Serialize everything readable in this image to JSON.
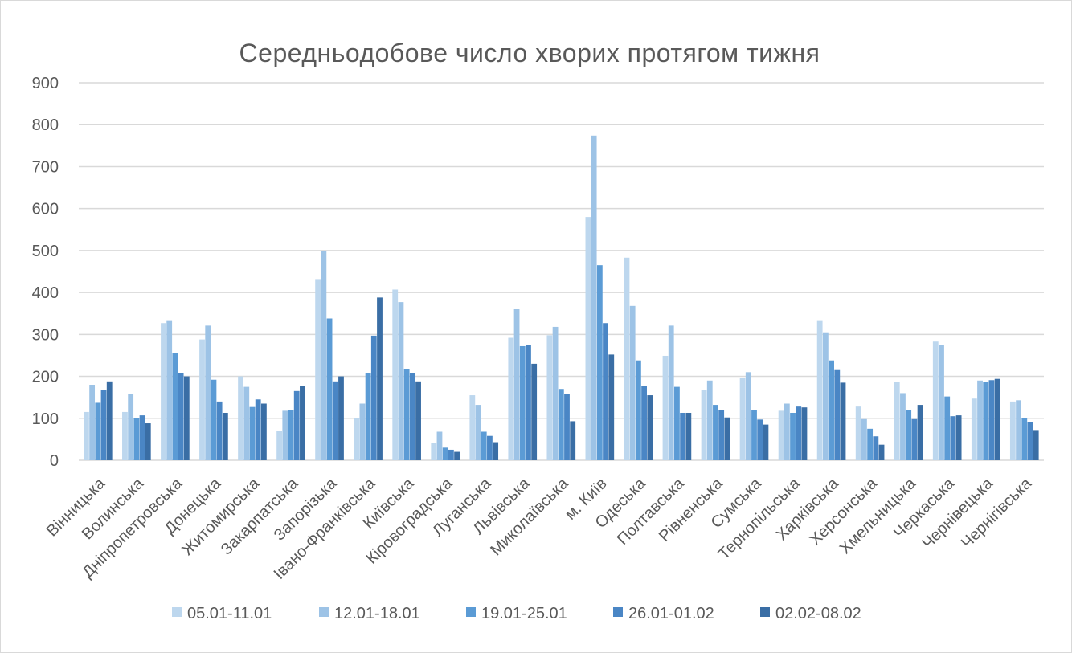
{
  "chart_data": {
    "type": "bar",
    "title": "Середньодобове число хворих протягом тижня",
    "xlabel": "",
    "ylabel": "",
    "ylim": [
      0,
      900
    ],
    "yticks": [
      0,
      100,
      200,
      300,
      400,
      500,
      600,
      700,
      800,
      900
    ],
    "grid": true,
    "legend_position": "bottom",
    "categories": [
      "Вінницька",
      "Волинська",
      "Дніпропетровська",
      "Донецька",
      "Житомирська",
      "Закарпатська",
      "Запорізька",
      "Івано-Франківська",
      "Київська",
      "Кіровоградська",
      "Луганська",
      "Львівська",
      "Миколаївська",
      "м. Київ",
      "Одеська",
      "Полтавська",
      "Рівненська",
      "Сумська",
      "Тернопільська",
      "Харківська",
      "Херсонська",
      "Хмельницька",
      "Черкаська",
      "Чернівецька",
      "Чернігівська"
    ],
    "series": [
      {
        "name": "05.01-11.01",
        "color": "#bdd7ee",
        "values": [
          115,
          115,
          327,
          288,
          200,
          70,
          432,
          100,
          407,
          42,
          155,
          292,
          298,
          580,
          483,
          249,
          168,
          197,
          118,
          332,
          128,
          186,
          283,
          147,
          140
        ]
      },
      {
        "name": "12.01-18.01",
        "color": "#9dc3e6",
        "values": [
          180,
          158,
          332,
          321,
          175,
          118,
          498,
          135,
          377,
          68,
          132,
          360,
          318,
          774,
          368,
          321,
          190,
          210,
          135,
          305,
          98,
          160,
          275,
          190,
          143
        ]
      },
      {
        "name": "19.01-25.01",
        "color": "#5b9bd5",
        "values": [
          137,
          100,
          255,
          192,
          127,
          120,
          338,
          208,
          218,
          30,
          68,
          272,
          170,
          465,
          238,
          175,
          132,
          120,
          113,
          238,
          75,
          120,
          152,
          186,
          100
        ]
      },
      {
        "name": "26.01-01.02",
        "color": "#4a86c5",
        "values": [
          168,
          107,
          207,
          140,
          145,
          165,
          188,
          297,
          207,
          25,
          58,
          275,
          158,
          327,
          178,
          113,
          120,
          97,
          128,
          215,
          57,
          98,
          105,
          191,
          90
        ]
      },
      {
        "name": "02.02-08.02",
        "color": "#3a6ea5",
        "values": [
          188,
          88,
          200,
          113,
          135,
          178,
          200,
          388,
          188,
          20,
          43,
          230,
          93,
          252,
          155,
          113,
          102,
          85,
          126,
          185,
          37,
          132,
          107,
          194,
          72
        ]
      }
    ]
  }
}
